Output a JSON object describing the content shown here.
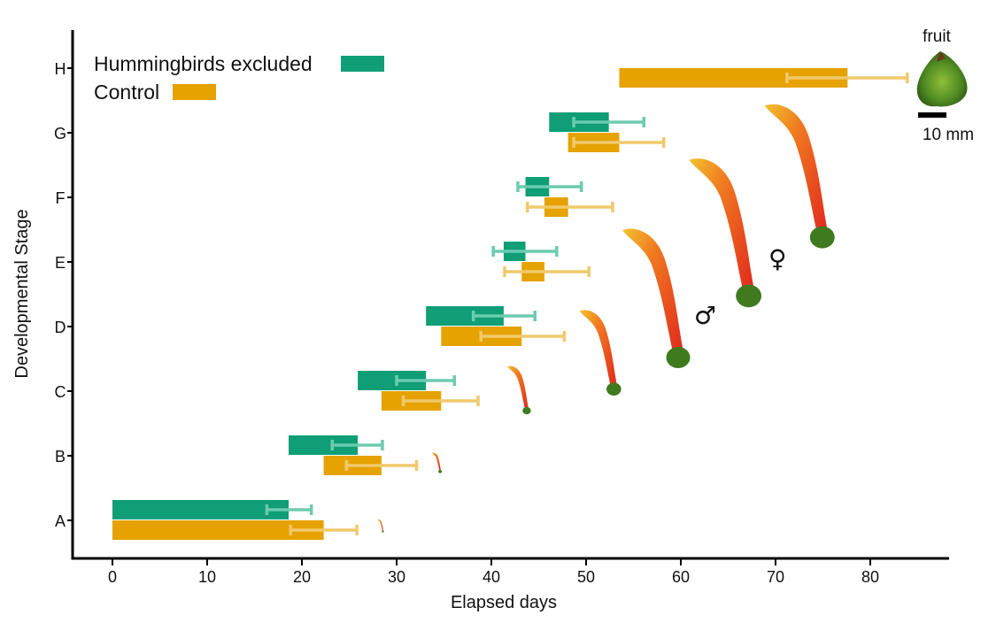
{
  "chart_data": {
    "type": "bar",
    "orientation": "horizontal-floating",
    "xlabel": "Elapsed days",
    "ylabel": "Developmental Stage",
    "xlim": [
      -4,
      88
    ],
    "x_ticks": [
      0,
      10,
      20,
      30,
      40,
      50,
      60,
      70,
      80
    ],
    "categories": [
      "A",
      "B",
      "C",
      "D",
      "E",
      "F",
      "G",
      "H"
    ],
    "grid": false,
    "legend": "top-left",
    "series": [
      {
        "name": "Hummingbirds excluded",
        "color": "#0f9e76",
        "error_color": "#6ccbb0",
        "bars": [
          {
            "stage": "A",
            "start": 0,
            "end": 18.6,
            "err_low": 16.3,
            "err_high": 21.0
          },
          {
            "stage": "B",
            "start": 18.6,
            "end": 25.9,
            "err_low": 23.2,
            "err_high": 28.5
          },
          {
            "stage": "C",
            "start": 25.9,
            "end": 33.1,
            "err_low": 30.0,
            "err_high": 36.1
          },
          {
            "stage": "D",
            "start": 33.1,
            "end": 41.3,
            "err_low": 38.1,
            "err_high": 44.6
          },
          {
            "stage": "E",
            "start": 41.3,
            "end": 43.6,
            "err_low": 40.2,
            "err_high": 46.9
          },
          {
            "stage": "F",
            "start": 43.6,
            "end": 46.1,
            "err_low": 42.8,
            "err_high": 49.5
          },
          {
            "stage": "G",
            "start": 46.1,
            "end": 52.4,
            "err_low": 48.7,
            "err_high": 56.1
          },
          {
            "stage": "H",
            "start": null,
            "end": null,
            "err_low": null,
            "err_high": null
          }
        ]
      },
      {
        "name": "Control",
        "color": "#e5a200",
        "error_color": "#f0c96b",
        "bars": [
          {
            "stage": "A",
            "start": 0,
            "end": 22.3,
            "err_low": 18.8,
            "err_high": 25.8
          },
          {
            "stage": "B",
            "start": 22.3,
            "end": 28.4,
            "err_low": 24.7,
            "err_high": 32.1
          },
          {
            "stage": "C",
            "start": 28.4,
            "end": 34.7,
            "err_low": 30.7,
            "err_high": 38.6
          },
          {
            "stage": "D",
            "start": 34.7,
            "end": 43.2,
            "err_low": 38.9,
            "err_high": 47.7
          },
          {
            "stage": "E",
            "start": 43.2,
            "end": 45.6,
            "err_low": 41.4,
            "err_high": 50.3
          },
          {
            "stage": "F",
            "start": 45.6,
            "end": 48.1,
            "err_low": 43.8,
            "err_high": 52.8
          },
          {
            "stage": "G",
            "start": 48.1,
            "end": 53.5,
            "err_low": 48.7,
            "err_high": 58.2
          },
          {
            "stage": "H",
            "start": 53.5,
            "end": 77.6,
            "err_low": 71.2,
            "err_high": 83.9
          }
        ]
      }
    ],
    "annotations": {
      "fruit_label": "fruit",
      "scale_label": "10 mm",
      "male_symbol": "♂",
      "female_symbol": "♀"
    }
  }
}
